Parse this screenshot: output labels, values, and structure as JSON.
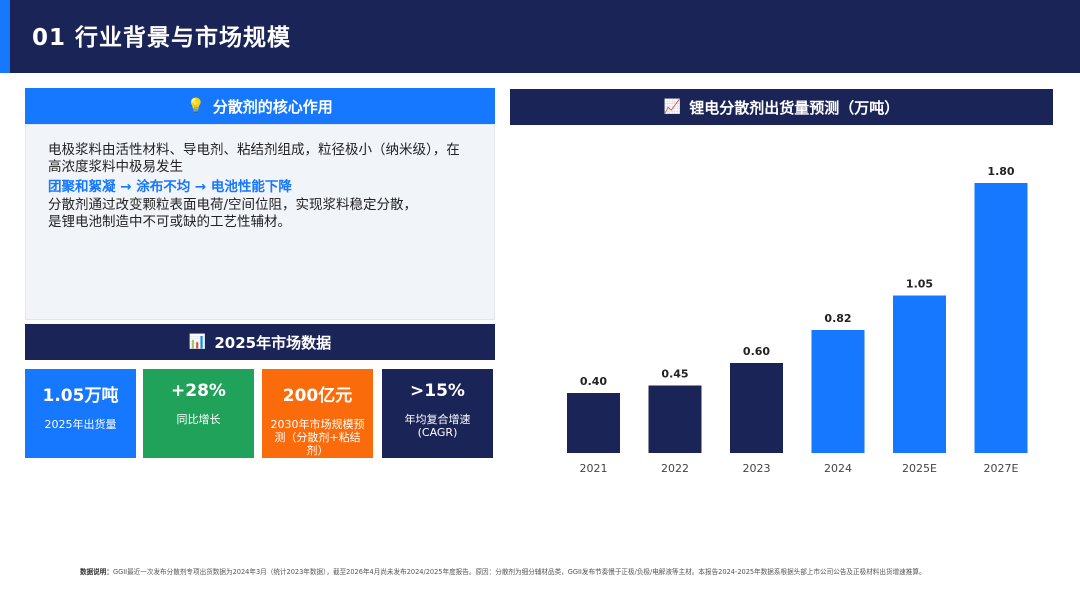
{
  "header": {
    "title": "01  行业背景与市场规模"
  },
  "core": {
    "icon": "lightbulb-icon",
    "title": "分散剂的核心作用",
    "line1": "电极浆料由活性材料、导电剂、粘结剂组成，粒径极小（纳米级），在",
    "line2": "高浓度浆料中极易发生",
    "highlight": "团聚和絮凝 → 涂布不均 → 电池性能下降",
    "line3": "分散剂通过改变颗粒表面电荷/空间位阻，实现浆料稳定分散，",
    "line4": "是锂电池制造中不可或缺的工艺性辅材。"
  },
  "market": {
    "icon": "bar-chart-icon",
    "title": "2025年市场数据",
    "cards": [
      {
        "value": "1.05万吨",
        "label": "2025年出货量",
        "color": "#1677ff"
      },
      {
        "value": "+28%",
        "label": "同比增长",
        "color": "#21a25b"
      },
      {
        "value": "200亿元",
        "label": "2030年市场规模预测（分散剂+粘结剂）",
        "color": "#fa6b0c"
      },
      {
        "value": ">15%",
        "label": "年均复合增速(CAGR)",
        "color": "#1b2456"
      }
    ]
  },
  "chart_panel": {
    "icon": "line-chart-icon",
    "title": "锂电分散剂出货量预测（万吨）"
  },
  "chart_data": {
    "type": "bar",
    "categories": [
      "2021",
      "2022",
      "2023",
      "2024",
      "2025E",
      "2027E"
    ],
    "values": [
      0.4,
      0.45,
      0.6,
      0.82,
      1.05,
      1.8
    ],
    "value_labels": [
      "0.40",
      "0.45",
      "0.60",
      "0.82",
      "1.05",
      "1.80"
    ],
    "colors": [
      "#1b2456",
      "#1b2456",
      "#1b2456",
      "#1677ff",
      "#1677ff",
      "#1677ff"
    ],
    "ylim": [
      0,
      1.8
    ],
    "grid": false,
    "legend": "none"
  },
  "footnote": {
    "label": "数据说明：",
    "text": "GGII最近一次发布分散剂专项出货数据为2024年3月（统计2023年数据），截至2026年4月尚未发布2024/2025年度报告。原因：分散剂为细分辅材品类，GGII发布节奏慢于正极/负极/电解液等主材。本报告2024-2025年数据系根据头部上市公司公告及正极材料出货增速推算。"
  }
}
